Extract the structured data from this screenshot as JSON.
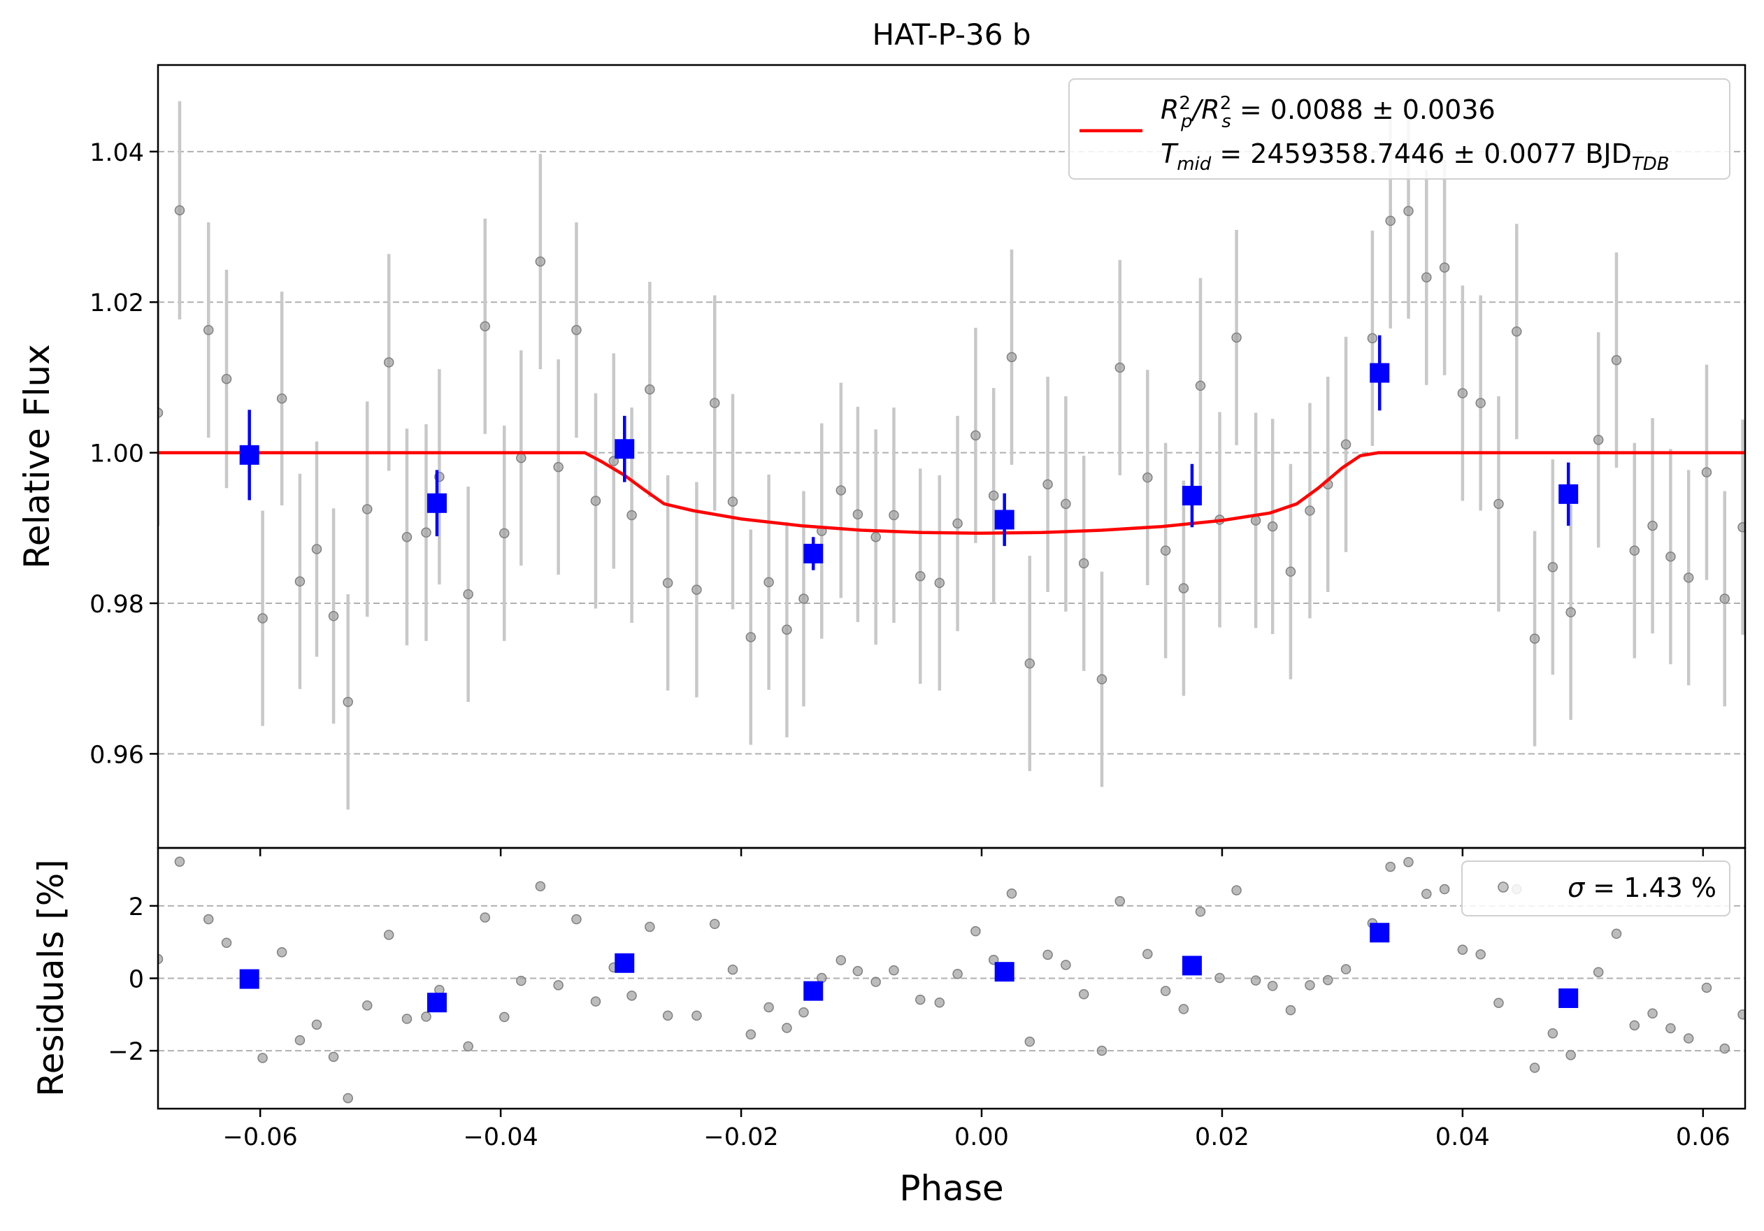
{
  "chart_data": [
    {
      "type": "scatter",
      "panel": "flux",
      "title": "HAT-P-36 b",
      "xlabel": "",
      "ylabel": "Relative Flux",
      "xlim": [
        -0.0685,
        0.0635
      ],
      "ylim": [
        0.9475,
        1.0515
      ],
      "yticks": [
        0.96,
        0.98,
        1.0,
        1.02,
        1.04
      ],
      "ytick_labels": [
        "0.96",
        "0.98",
        "1.00",
        "1.02",
        "1.04"
      ],
      "xticks": [
        -0.06,
        -0.04,
        -0.02,
        0.0,
        0.02,
        0.04,
        0.06
      ],
      "grid": "horizontal dashed",
      "legend": {
        "placement": "top-right",
        "line1_prefix": "R",
        "line1_sub_a": "p",
        "line1_sup_a": "2",
        "line1_mid": "/R",
        "line1_sub_b": "s",
        "line1_sup_b": "2",
        "line1_rest": " = 0.0088 ± 0.0036",
        "line2_prefix": "T",
        "line2_sub": "mid",
        "line2_rest": " = 2459358.7446 ± 0.0077 BJD",
        "line2_sub2": "TDB"
      },
      "colors": {
        "raw": "#808080",
        "raw_err": "#c8c8c8",
        "binned": "#0000ff",
        "model": "#ff0000",
        "grid": "#b0b0b0"
      },
      "series": [
        {
          "kind": "raw",
          "points": [
            [
              -0.0685,
              1.0053,
              0.015
            ],
            [
              -0.0667,
              1.0322,
              0.0145
            ],
            [
              -0.0643,
              1.0163,
              0.0143
            ],
            [
              -0.0628,
              1.0098,
              0.0145
            ],
            [
              -0.0598,
              0.978,
              0.0143
            ],
            [
              -0.0582,
              1.0072,
              0.0142
            ],
            [
              -0.0567,
              0.9829,
              0.0143
            ],
            [
              -0.0553,
              0.9872,
              0.0143
            ],
            [
              -0.0539,
              0.9783,
              0.0143
            ],
            [
              -0.0527,
              0.9669,
              0.0143
            ],
            [
              -0.0511,
              0.9925,
              0.0143
            ],
            [
              -0.0493,
              1.012,
              0.0144
            ],
            [
              -0.0478,
              0.9888,
              0.0144
            ],
            [
              -0.0462,
              0.9894,
              0.0144
            ],
            [
              -0.0451,
              0.9968,
              0.0143
            ],
            [
              -0.0427,
              0.9812,
              0.0143
            ],
            [
              -0.0413,
              1.0168,
              0.0143
            ],
            [
              -0.0397,
              0.9893,
              0.0143
            ],
            [
              -0.0383,
              0.9993,
              0.0143
            ],
            [
              -0.0367,
              1.0254,
              0.0143
            ],
            [
              -0.0352,
              0.9981,
              0.0143
            ],
            [
              -0.0337,
              1.0163,
              0.0143
            ],
            [
              -0.0321,
              0.9936,
              0.0143
            ],
            [
              -0.0306,
              0.9989,
              0.0143
            ],
            [
              -0.0291,
              0.9917,
              0.0143
            ],
            [
              -0.0276,
              1.0084,
              0.0143
            ],
            [
              -0.0261,
              0.9827,
              0.0143
            ],
            [
              -0.0237,
              0.9818,
              0.0143
            ],
            [
              -0.0222,
              1.0066,
              0.0143
            ],
            [
              -0.0207,
              0.9935,
              0.0143
            ],
            [
              -0.0192,
              0.9755,
              0.0143
            ],
            [
              -0.0177,
              0.9828,
              0.0143
            ],
            [
              -0.0162,
              0.9765,
              0.0143
            ],
            [
              -0.0148,
              0.9806,
              0.0143
            ],
            [
              -0.0133,
              0.9896,
              0.0143
            ],
            [
              -0.0117,
              0.995,
              0.0143
            ],
            [
              -0.0103,
              0.9918,
              0.0143
            ],
            [
              -0.0088,
              0.9888,
              0.0143
            ],
            [
              -0.0073,
              0.9917,
              0.0143
            ],
            [
              -0.0051,
              0.9836,
              0.0143
            ],
            [
              -0.0035,
              0.9827,
              0.0143
            ],
            [
              -0.002,
              0.9906,
              0.0143
            ],
            [
              -0.0005,
              1.0023,
              0.0143
            ],
            [
              0.001,
              0.9943,
              0.0143
            ],
            [
              0.0025,
              1.0127,
              0.0143
            ],
            [
              0.004,
              0.972,
              0.0143
            ],
            [
              0.0055,
              0.9958,
              0.0143
            ],
            [
              0.007,
              0.9932,
              0.0143
            ],
            [
              0.0085,
              0.9853,
              0.0143
            ],
            [
              0.01,
              0.9699,
              0.0143
            ],
            [
              0.0115,
              1.0113,
              0.0143
            ],
            [
              0.0138,
              0.9967,
              0.0143
            ],
            [
              0.0153,
              0.987,
              0.0143
            ],
            [
              0.0168,
              0.982,
              0.0143
            ],
            [
              0.0182,
              1.0089,
              0.0143
            ],
            [
              0.0198,
              0.9911,
              0.0143
            ],
            [
              0.0212,
              1.0153,
              0.0143
            ],
            [
              0.0228,
              0.991,
              0.0143
            ],
            [
              0.0242,
              0.9902,
              0.0143
            ],
            [
              0.0257,
              0.9842,
              0.0143
            ],
            [
              0.0273,
              0.9923,
              0.0143
            ],
            [
              0.0288,
              0.9958,
              0.0143
            ],
            [
              0.0303,
              1.0011,
              0.0143
            ],
            [
              0.0325,
              1.0152,
              0.0143
            ],
            [
              0.034,
              1.0308,
              0.0143
            ],
            [
              0.0355,
              1.0321,
              0.0143
            ],
            [
              0.037,
              1.0233,
              0.0143
            ],
            [
              0.0385,
              1.0246,
              0.0143
            ],
            [
              0.04,
              1.0079,
              0.0143
            ],
            [
              0.0415,
              1.0066,
              0.0143
            ],
            [
              0.043,
              0.9932,
              0.0143
            ],
            [
              0.0445,
              1.0161,
              0.0143
            ],
            [
              0.046,
              0.9753,
              0.0143
            ],
            [
              0.0475,
              0.9848,
              0.0143
            ],
            [
              0.049,
              0.9788,
              0.0143
            ],
            [
              0.0513,
              1.0017,
              0.0143
            ],
            [
              0.0528,
              1.0123,
              0.0143
            ],
            [
              0.0543,
              0.987,
              0.0143
            ],
            [
              0.0558,
              0.9903,
              0.0143
            ],
            [
              0.0573,
              0.9862,
              0.0143
            ],
            [
              0.0588,
              0.9834,
              0.0143
            ],
            [
              0.0603,
              0.9974,
              0.0143
            ],
            [
              0.0618,
              0.9806,
              0.0143
            ],
            [
              0.0633,
              0.9901,
              0.0143
            ]
          ]
        },
        {
          "kind": "binned",
          "points": [
            [
              -0.0609,
              0.9997,
              0.006
            ],
            [
              -0.0453,
              0.9933,
              0.0044
            ],
            [
              -0.0297,
              1.0005,
              0.0044
            ],
            [
              -0.014,
              0.9866,
              0.0022
            ],
            [
              0.0019,
              0.9911,
              0.0035
            ],
            [
              0.0175,
              0.9943,
              0.0042
            ],
            [
              0.0331,
              1.0106,
              0.005
            ],
            [
              0.0488,
              0.9945,
              0.0042
            ]
          ]
        },
        {
          "kind": "model",
          "points": [
            [
              -0.0685,
              1.0
            ],
            [
              -0.033,
              1.0
            ],
            [
              -0.0316,
              0.9988
            ],
            [
              -0.0297,
              0.997
            ],
            [
              -0.028,
              0.995
            ],
            [
              -0.0264,
              0.9932
            ],
            [
              -0.024,
              0.9923
            ],
            [
              -0.02,
              0.9912
            ],
            [
              -0.015,
              0.9903
            ],
            [
              -0.01,
              0.9897
            ],
            [
              -0.005,
              0.9894
            ],
            [
              0.0,
              0.9893
            ],
            [
              0.005,
              0.9894
            ],
            [
              0.01,
              0.9897
            ],
            [
              0.015,
              0.9902
            ],
            [
              0.02,
              0.991
            ],
            [
              0.024,
              0.992
            ],
            [
              0.0262,
              0.9932
            ],
            [
              0.028,
              0.9953
            ],
            [
              0.03,
              0.998
            ],
            [
              0.0315,
              0.9996
            ],
            [
              0.033,
              1.0
            ],
            [
              0.0635,
              1.0
            ]
          ]
        }
      ]
    },
    {
      "type": "scatter",
      "panel": "residuals",
      "title": "",
      "xlabel": "Phase",
      "ylabel": "Residuals [%]",
      "xlim": [
        -0.0685,
        0.0635
      ],
      "ylim": [
        -3.6,
        3.6
      ],
      "yticks": [
        -2,
        0,
        2
      ],
      "ytick_labels": [
        "−2",
        "0",
        "2"
      ],
      "xticks": [
        -0.06,
        -0.04,
        -0.02,
        0.0,
        0.02,
        0.04,
        0.06
      ],
      "xtick_labels": [
        "−0.06",
        "−0.04",
        "−0.02",
        "0.00",
        "0.02",
        "0.04",
        "0.06"
      ],
      "grid": "horizontal dashed",
      "legend": {
        "placement": "top-right",
        "symbol": "σ",
        "rest": " = 1.43 %"
      },
      "series": [
        {
          "kind": "raw",
          "points": [
            [
              -0.0685,
              0.53
            ],
            [
              -0.0667,
              3.22
            ],
            [
              -0.0643,
              1.63
            ],
            [
              -0.0628,
              0.98
            ],
            [
              -0.0598,
              -2.2
            ],
            [
              -0.0582,
              0.72
            ],
            [
              -0.0567,
              -1.71
            ],
            [
              -0.0553,
              -1.28
            ],
            [
              -0.0539,
              -2.17
            ],
            [
              -0.0527,
              -3.31
            ],
            [
              -0.0511,
              -0.75
            ],
            [
              -0.0493,
              1.2
            ],
            [
              -0.0478,
              -1.12
            ],
            [
              -0.0462,
              -1.06
            ],
            [
              -0.0451,
              -0.32
            ],
            [
              -0.0427,
              -1.88
            ],
            [
              -0.0413,
              1.68
            ],
            [
              -0.0397,
              -1.07
            ],
            [
              -0.0383,
              -0.07
            ],
            [
              -0.0367,
              2.54
            ],
            [
              -0.0352,
              -0.19
            ],
            [
              -0.0337,
              1.63
            ],
            [
              -0.0321,
              -0.64
            ],
            [
              -0.0306,
              0.3
            ],
            [
              -0.0291,
              -0.48
            ],
            [
              -0.0276,
              1.42
            ],
            [
              -0.0261,
              -1.03
            ],
            [
              -0.0237,
              -1.03
            ],
            [
              -0.0222,
              1.5
            ],
            [
              -0.0207,
              0.24
            ],
            [
              -0.0192,
              -1.55
            ],
            [
              -0.0177,
              -0.8
            ],
            [
              -0.0162,
              -1.37
            ],
            [
              -0.0148,
              -0.94
            ],
            [
              -0.0133,
              0.01
            ],
            [
              -0.0117,
              0.5
            ],
            [
              -0.0103,
              0.2
            ],
            [
              -0.0088,
              -0.1
            ],
            [
              -0.0073,
              0.22
            ],
            [
              -0.0051,
              -0.59
            ],
            [
              -0.0035,
              -0.67
            ],
            [
              -0.002,
              0.12
            ],
            [
              -0.0005,
              1.3
            ],
            [
              0.001,
              0.51
            ],
            [
              0.0025,
              2.34
            ],
            [
              0.004,
              -1.75
            ],
            [
              0.0055,
              0.65
            ],
            [
              0.007,
              0.37
            ],
            [
              0.0085,
              -0.44
            ],
            [
              0.01,
              -2.0
            ],
            [
              0.0115,
              2.13
            ],
            [
              0.0138,
              0.67
            ],
            [
              0.0153,
              -0.35
            ],
            [
              0.0168,
              -0.85
            ],
            [
              0.0182,
              1.84
            ],
            [
              0.0198,
              0.01
            ],
            [
              0.0212,
              2.43
            ],
            [
              0.0228,
              -0.06
            ],
            [
              0.0242,
              -0.21
            ],
            [
              0.0257,
              -0.88
            ],
            [
              0.0273,
              -0.19
            ],
            [
              0.0288,
              -0.05
            ],
            [
              0.0303,
              0.25
            ],
            [
              0.0325,
              1.52
            ],
            [
              0.034,
              3.08
            ],
            [
              0.0355,
              3.21
            ],
            [
              0.037,
              2.33
            ],
            [
              0.0385,
              2.46
            ],
            [
              0.04,
              0.79
            ],
            [
              0.0415,
              0.66
            ],
            [
              0.043,
              -0.68
            ],
            [
              0.0445,
              2.46
            ],
            [
              0.046,
              -2.47
            ],
            [
              0.0475,
              -1.52
            ],
            [
              0.049,
              -2.12
            ],
            [
              0.0513,
              0.17
            ],
            [
              0.0528,
              1.23
            ],
            [
              0.0543,
              -1.3
            ],
            [
              0.0558,
              -0.97
            ],
            [
              0.0573,
              -1.38
            ],
            [
              0.0588,
              -1.66
            ],
            [
              0.0603,
              -0.26
            ],
            [
              0.0618,
              -1.94
            ],
            [
              0.0633,
              -1.0
            ]
          ]
        },
        {
          "kind": "binned",
          "points": [
            [
              -0.0609,
              -0.02
            ],
            [
              -0.0453,
              -0.67
            ],
            [
              -0.0297,
              0.42
            ],
            [
              -0.014,
              -0.35
            ],
            [
              0.0019,
              0.18
            ],
            [
              0.0175,
              0.35
            ],
            [
              0.0331,
              1.26
            ],
            [
              0.0488,
              -0.55
            ]
          ]
        }
      ]
    }
  ]
}
